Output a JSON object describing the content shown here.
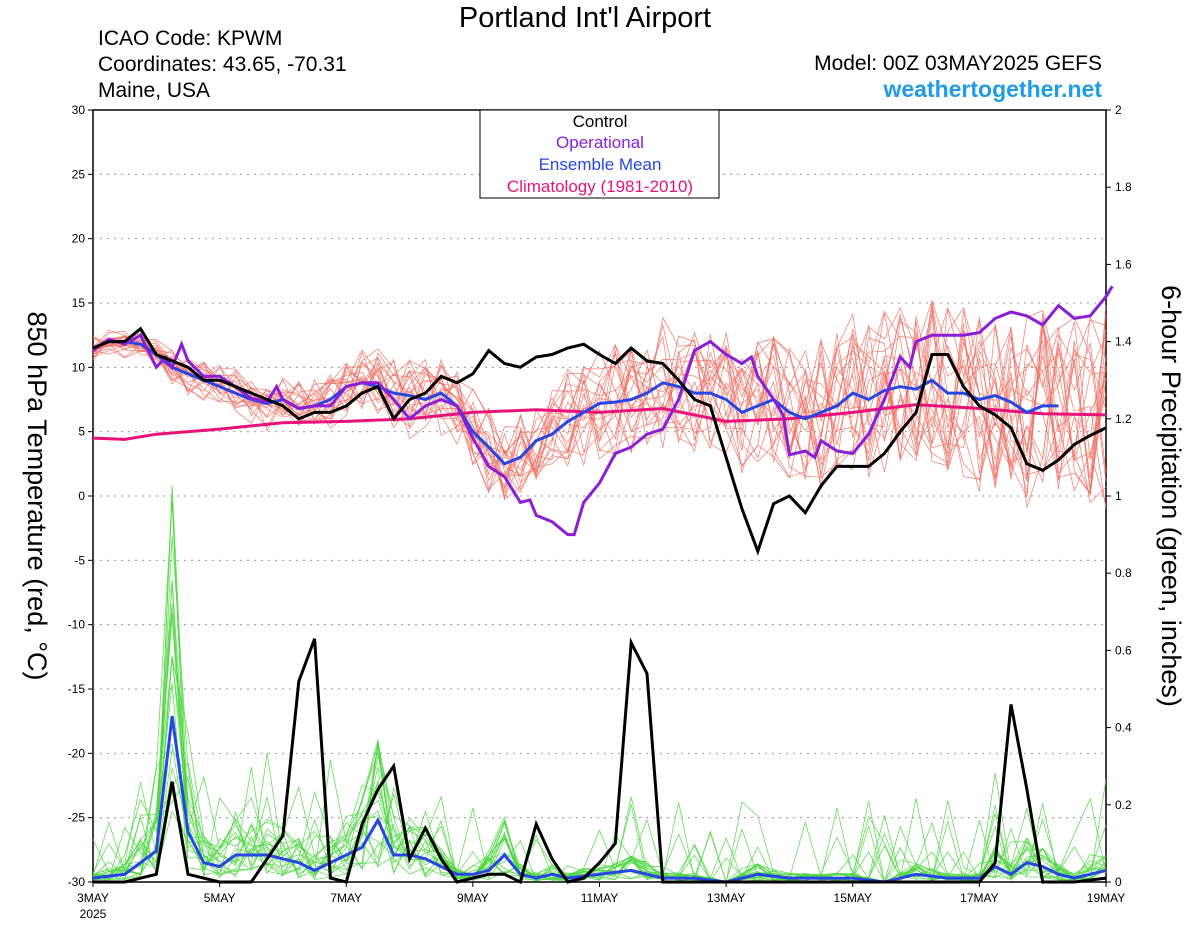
{
  "header": {
    "title": "Portland Int'l Airport",
    "icao": "ICAO Code: KPWM",
    "coords": "Coordinates: 43.65, -70.31",
    "region": "Maine, USA",
    "model": "Model: 00Z 03MAY2025 GEFS",
    "website": "weathertogether.net"
  },
  "chart_data": {
    "type": "line",
    "left_axis": {
      "label": "850 hPa Temperature (red, °C)",
      "range": [
        -30,
        30
      ],
      "ticks": [
        "30",
        "25",
        "20",
        "15",
        "10",
        "5",
        "0",
        "-5",
        "-10",
        "-15",
        "-20",
        "-25",
        "-30"
      ]
    },
    "right_axis": {
      "label": "6-hour Precipitation (green, inches)",
      "range": [
        0,
        2
      ],
      "ticks": [
        "2",
        "1.8",
        "1.6",
        "1.4",
        "1.2",
        "1",
        "0.8",
        "0.6",
        "0.4",
        "0.2",
        "0"
      ]
    },
    "x_axis": {
      "range_days": [
        0,
        16
      ],
      "tick_labels": [
        "3MAY",
        "5MAY",
        "7MAY",
        "9MAY",
        "11MAY",
        "13MAY",
        "15MAY",
        "17MAY",
        "19MAY"
      ],
      "year_label": "2025"
    },
    "grid": "horizontal dotted",
    "legend": {
      "placement": "top-center",
      "entries": [
        {
          "label": "Control",
          "color": "#000000"
        },
        {
          "label": "Operational",
          "color": "#8a1fd6"
        },
        {
          "label": "Ensemble Mean",
          "color": "#2846e6"
        },
        {
          "label": "Climatology (1981-2010)",
          "color": "#e8137a"
        }
      ]
    },
    "colors": {
      "members_temp": "#f26a5e",
      "members_precip": "#4cd640",
      "control": "#000000",
      "operational": "#8a1fd6",
      "mean": "#2846e6",
      "climatology": "#e8137a"
    },
    "temperature": {
      "control": [
        [
          0,
          11.5
        ],
        [
          0.25,
          12
        ],
        [
          0.5,
          12
        ],
        [
          0.75,
          13
        ],
        [
          1,
          11
        ],
        [
          1.25,
          10.5
        ],
        [
          1.5,
          10
        ],
        [
          1.75,
          9
        ],
        [
          2,
          9
        ],
        [
          2.25,
          8.5
        ],
        [
          2.5,
          8
        ],
        [
          2.75,
          7.5
        ],
        [
          3,
          7
        ],
        [
          3.25,
          6
        ],
        [
          3.5,
          6.5
        ],
        [
          3.75,
          6.5
        ],
        [
          4,
          7
        ],
        [
          4.25,
          8
        ],
        [
          4.5,
          8.5
        ],
        [
          4.75,
          6
        ],
        [
          5,
          7.5
        ],
        [
          5.25,
          8
        ],
        [
          5.5,
          9.3
        ],
        [
          5.75,
          8.8
        ],
        [
          6,
          9.5
        ],
        [
          6.25,
          11.3
        ],
        [
          6.5,
          10.3
        ],
        [
          6.75,
          10
        ],
        [
          7,
          10.8
        ],
        [
          7.25,
          11
        ],
        [
          7.5,
          11.5
        ],
        [
          7.75,
          11.8
        ],
        [
          8,
          11
        ],
        [
          8.25,
          10.3
        ],
        [
          8.5,
          11.5
        ],
        [
          8.75,
          10.5
        ],
        [
          9,
          10.3
        ],
        [
          9.25,
          9
        ],
        [
          9.5,
          7.5
        ],
        [
          9.75,
          7
        ],
        [
          10,
          3
        ],
        [
          10.25,
          -1
        ],
        [
          10.5,
          -4.3
        ],
        [
          10.75,
          -0.6
        ],
        [
          11,
          0
        ],
        [
          11.25,
          -1.3
        ],
        [
          11.5,
          0.8
        ],
        [
          11.75,
          2.3
        ],
        [
          12,
          2.3
        ],
        [
          12.25,
          2.3
        ],
        [
          12.5,
          3.3
        ],
        [
          12.75,
          5
        ],
        [
          13,
          6.5
        ],
        [
          13.25,
          11
        ],
        [
          13.5,
          11
        ],
        [
          13.75,
          8.5
        ],
        [
          14,
          7
        ],
        [
          14.25,
          6.3
        ],
        [
          14.5,
          5.3
        ],
        [
          14.75,
          2.5
        ],
        [
          15,
          2
        ],
        [
          15.25,
          2.8
        ],
        [
          15.5,
          4
        ],
        [
          15.75,
          4.7
        ],
        [
          16,
          5.3
        ]
      ],
      "operational": [
        [
          0,
          11.3
        ],
        [
          0.25,
          12.2
        ],
        [
          0.5,
          11.8
        ],
        [
          0.75,
          12.5
        ],
        [
          0.9,
          11
        ],
        [
          1,
          10
        ],
        [
          1.15,
          10.8
        ],
        [
          1.25,
          10
        ],
        [
          1.4,
          11.8
        ],
        [
          1.5,
          10.5
        ],
        [
          1.75,
          9.3
        ],
        [
          2,
          9.3
        ],
        [
          2.25,
          8.5
        ],
        [
          2.5,
          7.6
        ],
        [
          2.75,
          7.3
        ],
        [
          2.9,
          8.5
        ],
        [
          3,
          7.5
        ],
        [
          3.25,
          6.8
        ],
        [
          3.5,
          7
        ],
        [
          3.75,
          7
        ],
        [
          4,
          8.5
        ],
        [
          4.25,
          8.8
        ],
        [
          4.5,
          8.8
        ],
        [
          4.75,
          7.5
        ],
        [
          5,
          6
        ],
        [
          5.25,
          7
        ],
        [
          5.5,
          7.5
        ],
        [
          5.75,
          7
        ],
        [
          6,
          4.5
        ],
        [
          6.25,
          2.3
        ],
        [
          6.5,
          1.5
        ],
        [
          6.75,
          -0.5
        ],
        [
          6.9,
          -0.3
        ],
        [
          7,
          -1.5
        ],
        [
          7.25,
          -2
        ],
        [
          7.5,
          -3
        ],
        [
          7.6,
          -3
        ],
        [
          7.75,
          -0.5
        ],
        [
          8,
          1
        ],
        [
          8.25,
          3.3
        ],
        [
          8.5,
          3.8
        ],
        [
          8.75,
          4.8
        ],
        [
          9,
          5.2
        ],
        [
          9.25,
          7.5
        ],
        [
          9.5,
          11.3
        ],
        [
          9.75,
          12
        ],
        [
          10,
          11
        ],
        [
          10.25,
          10.3
        ],
        [
          10.4,
          10.8
        ],
        [
          10.5,
          9.3
        ],
        [
          10.75,
          7.5
        ],
        [
          10.9,
          6.3
        ],
        [
          11,
          3.2
        ],
        [
          11.25,
          3.5
        ],
        [
          11.4,
          3
        ],
        [
          11.5,
          4.3
        ],
        [
          11.75,
          3.5
        ],
        [
          12,
          3.3
        ],
        [
          12.25,
          4.8
        ],
        [
          12.5,
          7.5
        ],
        [
          12.75,
          10.8
        ],
        [
          12.9,
          10
        ],
        [
          13,
          12
        ],
        [
          13.25,
          12.5
        ],
        [
          13.5,
          12.5
        ],
        [
          13.75,
          12.5
        ],
        [
          14,
          12.7
        ],
        [
          14.25,
          13.8
        ],
        [
          14.5,
          14.3
        ],
        [
          14.75,
          14
        ],
        [
          15,
          13.3
        ],
        [
          15.25,
          14.8
        ],
        [
          15.5,
          13.8
        ],
        [
          15.75,
          14
        ],
        [
          16,
          15.5
        ],
        [
          16.1,
          16.3
        ]
      ],
      "mean": [
        [
          0,
          11.5
        ],
        [
          0.25,
          12
        ],
        [
          0.5,
          12
        ],
        [
          0.75,
          11.8
        ],
        [
          1,
          11
        ],
        [
          1.25,
          10
        ],
        [
          1.5,
          9.5
        ],
        [
          1.75,
          9
        ],
        [
          2,
          8.5
        ],
        [
          2.25,
          8
        ],
        [
          2.5,
          7.5
        ],
        [
          2.75,
          7.2
        ],
        [
          3,
          7.5
        ],
        [
          3.25,
          6.8
        ],
        [
          3.5,
          7
        ],
        [
          3.75,
          7.5
        ],
        [
          4,
          8.5
        ],
        [
          4.25,
          8.8
        ],
        [
          4.5,
          8.5
        ],
        [
          4.75,
          8
        ],
        [
          5,
          7.8
        ],
        [
          5.25,
          7.5
        ],
        [
          5.5,
          8
        ],
        [
          5.75,
          7
        ],
        [
          6,
          5
        ],
        [
          6.25,
          3.8
        ],
        [
          6.5,
          2.5
        ],
        [
          6.75,
          3
        ],
        [
          7,
          4.3
        ],
        [
          7.25,
          4.8
        ],
        [
          7.5,
          5.8
        ],
        [
          7.75,
          6.5
        ],
        [
          8,
          7.2
        ],
        [
          8.25,
          7.3
        ],
        [
          8.5,
          7.5
        ],
        [
          8.75,
          8
        ],
        [
          9,
          8.8
        ],
        [
          9.25,
          8.5
        ],
        [
          9.5,
          8
        ],
        [
          9.75,
          8
        ],
        [
          10,
          7.5
        ],
        [
          10.25,
          6.5
        ],
        [
          10.5,
          7
        ],
        [
          10.75,
          7.5
        ],
        [
          11,
          6.5
        ],
        [
          11.25,
          6
        ],
        [
          11.5,
          6.5
        ],
        [
          11.75,
          7
        ],
        [
          12,
          8
        ],
        [
          12.25,
          7.5
        ],
        [
          12.5,
          8.2
        ],
        [
          12.75,
          8.5
        ],
        [
          13,
          8.3
        ],
        [
          13.25,
          9
        ],
        [
          13.5,
          8
        ],
        [
          13.75,
          8
        ],
        [
          14,
          7.5
        ],
        [
          14.25,
          7.8
        ],
        [
          14.5,
          7.3
        ],
        [
          14.75,
          6.5
        ],
        [
          15,
          7
        ],
        [
          15.25,
          7
        ]
      ],
      "climatology": [
        [
          0,
          4.5
        ],
        [
          0.5,
          4.4
        ],
        [
          1,
          4.8
        ],
        [
          2,
          5.2
        ],
        [
          3,
          5.7
        ],
        [
          4,
          5.8
        ],
        [
          5,
          6
        ],
        [
          6,
          6.5
        ],
        [
          7,
          6.7
        ],
        [
          8,
          6.5
        ],
        [
          9,
          6.8
        ],
        [
          10,
          5.8
        ],
        [
          11,
          6
        ],
        [
          12,
          6.5
        ],
        [
          13,
          7.1
        ],
        [
          14,
          6.8
        ],
        [
          15,
          6.4
        ],
        [
          16,
          6.3
        ]
      ]
    },
    "precipitation": {
      "control": [
        [
          0,
          0
        ],
        [
          0.5,
          0
        ],
        [
          1,
          0.02
        ],
        [
          1.25,
          0.26
        ],
        [
          1.5,
          0.02
        ],
        [
          2,
          0
        ],
        [
          2.5,
          0
        ],
        [
          3,
          0.12
        ],
        [
          3.25,
          0.52
        ],
        [
          3.5,
          0.63
        ],
        [
          3.75,
          0.01
        ],
        [
          4,
          0
        ],
        [
          4.25,
          0.15
        ],
        [
          4.5,
          0.24
        ],
        [
          4.75,
          0.3
        ],
        [
          5,
          0.06
        ],
        [
          5.25,
          0.14
        ],
        [
          5.5,
          0.06
        ],
        [
          5.75,
          0
        ],
        [
          6,
          0.01
        ],
        [
          6.25,
          0.02
        ],
        [
          6.5,
          0.02
        ],
        [
          6.75,
          0
        ],
        [
          7,
          0.15
        ],
        [
          7.25,
          0.06
        ],
        [
          7.5,
          0
        ],
        [
          7.75,
          0.01
        ],
        [
          8,
          0.05
        ],
        [
          8.25,
          0.1
        ],
        [
          8.5,
          0.62
        ],
        [
          8.75,
          0.54
        ],
        [
          9,
          0
        ],
        [
          9.5,
          0
        ],
        [
          10,
          0
        ],
        [
          10.5,
          0
        ],
        [
          11,
          0
        ],
        [
          11.5,
          0
        ],
        [
          12,
          0
        ],
        [
          12.5,
          0
        ],
        [
          13,
          0
        ],
        [
          13.5,
          0
        ],
        [
          14,
          0
        ],
        [
          14.25,
          0.05
        ],
        [
          14.5,
          0.46
        ],
        [
          14.75,
          0.24
        ],
        [
          15,
          0
        ],
        [
          15.5,
          0
        ],
        [
          16,
          0.01
        ]
      ],
      "mean": [
        [
          0,
          0.01
        ],
        [
          0.5,
          0.02
        ],
        [
          1,
          0.08
        ],
        [
          1.25,
          0.43
        ],
        [
          1.5,
          0.13
        ],
        [
          1.75,
          0.05
        ],
        [
          2,
          0.04
        ],
        [
          2.25,
          0.07
        ],
        [
          2.5,
          0.07
        ],
        [
          2.75,
          0.07
        ],
        [
          3,
          0.06
        ],
        [
          3.25,
          0.05
        ],
        [
          3.5,
          0.03
        ],
        [
          3.75,
          0.05
        ],
        [
          4,
          0.07
        ],
        [
          4.25,
          0.09
        ],
        [
          4.5,
          0.16
        ],
        [
          4.75,
          0.07
        ],
        [
          5,
          0.07
        ],
        [
          5.25,
          0.06
        ],
        [
          5.5,
          0.04
        ],
        [
          5.75,
          0.02
        ],
        [
          6,
          0.02
        ],
        [
          6.25,
          0.03
        ],
        [
          6.5,
          0.07
        ],
        [
          6.75,
          0.02
        ],
        [
          7,
          0.01
        ],
        [
          7.25,
          0.02
        ],
        [
          7.5,
          0.01
        ],
        [
          8,
          0.02
        ],
        [
          8.5,
          0.03
        ],
        [
          9,
          0.01
        ],
        [
          9.5,
          0.01
        ],
        [
          10,
          0
        ],
        [
          10.5,
          0.02
        ],
        [
          11,
          0.01
        ],
        [
          11.5,
          0.01
        ],
        [
          12,
          0.01
        ],
        [
          12.5,
          0
        ],
        [
          13,
          0.02
        ],
        [
          13.5,
          0.01
        ],
        [
          14,
          0.01
        ],
        [
          14.25,
          0.04
        ],
        [
          14.5,
          0.02
        ],
        [
          14.75,
          0.05
        ],
        [
          15,
          0.04
        ],
        [
          15.25,
          0.02
        ],
        [
          15.5,
          0.01
        ],
        [
          16,
          0.03
        ]
      ]
    }
  }
}
